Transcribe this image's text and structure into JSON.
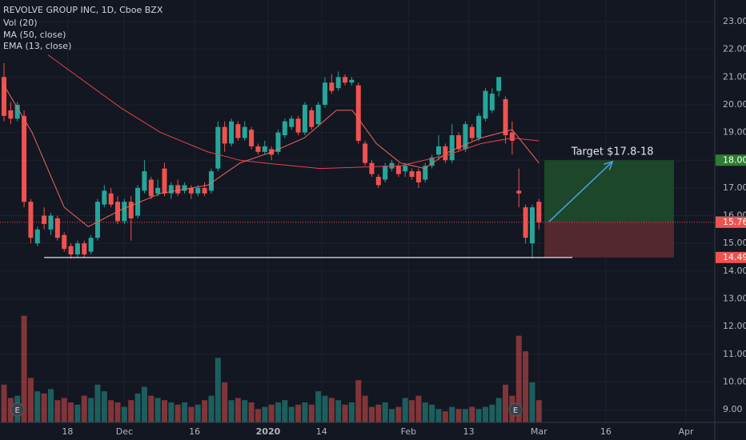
{
  "chart_data": {
    "type": "candlestick",
    "title": "REVOLVE GROUP INC, 1D, Cboe BZX",
    "volume_name": "Vol (20)",
    "up_color": "#26a69a",
    "down_color": "#ef5350",
    "xlim": [
      -0.6,
      106.3
    ],
    "ylim": [
      8.54,
      23.78
    ],
    "vol_lim": [
      0,
      2.7
    ],
    "grid": true,
    "xticks": [
      {
        "value": 9.5,
        "label": "18"
      },
      {
        "value": 18,
        "label": "Dec"
      },
      {
        "value": 28.5,
        "label": "16"
      },
      {
        "value": 39.5,
        "label": "2020"
      },
      {
        "value": 47.5,
        "label": "14"
      },
      {
        "value": 60.5,
        "label": "Feb"
      },
      {
        "value": 69.5,
        "label": "13"
      },
      {
        "value": 80,
        "label": "Mar"
      },
      {
        "value": 90,
        "label": "16"
      },
      {
        "value": 102,
        "label": "Apr"
      }
    ],
    "yticks": [
      {
        "value": 9,
        "label": "9.00"
      },
      {
        "value": 10,
        "label": "10.00"
      },
      {
        "value": 11,
        "label": "11.00"
      },
      {
        "value": 12,
        "label": "12.00"
      },
      {
        "value": 13,
        "label": "13.00"
      },
      {
        "value": 14,
        "label": "14.00"
      },
      {
        "value": 15,
        "label": "15.00"
      },
      {
        "value": 16,
        "label": "16.00"
      },
      {
        "value": 17,
        "label": "17.00"
      },
      {
        "value": 18,
        "label": "18.00"
      },
      {
        "value": 19,
        "label": "19.00"
      },
      {
        "value": 20,
        "label": "20.00"
      },
      {
        "value": 21,
        "label": "21.00"
      },
      {
        "value": 22,
        "label": "22.00"
      },
      {
        "value": 23,
        "label": "23.00"
      }
    ],
    "candles": [
      [
        21.0,
        21.5,
        19.4,
        19.6
      ],
      [
        19.8,
        20.1,
        19.3,
        19.5
      ],
      [
        19.5,
        20.1,
        19.4,
        20.0
      ],
      [
        19.6,
        19.8,
        16.3,
        16.5
      ],
      [
        16.5,
        16.6,
        15.0,
        15.2
      ],
      [
        15.0,
        15.6,
        14.9,
        15.5
      ],
      [
        16.0,
        16.3,
        15.5,
        15.7
      ],
      [
        15.5,
        16.1,
        15.3,
        16.0
      ],
      [
        15.9,
        16.0,
        15.1,
        15.2
      ],
      [
        15.3,
        15.4,
        14.7,
        14.8
      ],
      [
        14.9,
        15.0,
        14.45,
        14.6
      ],
      [
        14.6,
        15.1,
        14.5,
        15.0
      ],
      [
        15.0,
        15.1,
        14.5,
        14.6
      ],
      [
        14.7,
        15.3,
        14.6,
        15.2
      ],
      [
        15.2,
        16.6,
        15.1,
        16.5
      ],
      [
        16.4,
        17.1,
        16.3,
        16.9
      ],
      [
        16.8,
        17.0,
        16.3,
        16.4
      ],
      [
        16.5,
        16.7,
        15.7,
        15.8
      ],
      [
        15.8,
        16.6,
        15.7,
        16.5
      ],
      [
        16.5,
        16.7,
        15.1,
        15.9
      ],
      [
        16.0,
        17.1,
        15.9,
        17.0
      ],
      [
        16.9,
        18.0,
        16.8,
        17.6
      ],
      [
        17.3,
        17.4,
        16.6,
        16.7
      ],
      [
        16.8,
        17.3,
        16.7,
        17.0
      ],
      [
        17.7,
        17.9,
        16.7,
        16.8
      ],
      [
        16.8,
        17.2,
        16.6,
        17.1
      ],
      [
        17.1,
        17.3,
        16.7,
        16.8
      ],
      [
        16.9,
        17.2,
        16.8,
        17.1
      ],
      [
        17.0,
        17.1,
        16.6,
        16.8
      ],
      [
        16.8,
        17.1,
        16.7,
        17.0
      ],
      [
        17.0,
        17.2,
        16.7,
        16.8
      ],
      [
        16.9,
        17.7,
        16.8,
        17.6
      ],
      [
        17.7,
        19.4,
        17.6,
        19.2
      ],
      [
        19.2,
        19.4,
        18.3,
        18.6
      ],
      [
        18.6,
        19.5,
        18.5,
        19.4
      ],
      [
        19.3,
        19.4,
        18.7,
        18.8
      ],
      [
        18.8,
        19.4,
        18.7,
        19.2
      ],
      [
        19.1,
        19.2,
        18.4,
        18.5
      ],
      [
        18.5,
        18.6,
        18.2,
        18.3
      ],
      [
        18.3,
        18.7,
        18.2,
        18.5
      ],
      [
        18.4,
        18.5,
        18.0,
        18.2
      ],
      [
        18.3,
        19.1,
        18.2,
        19.0
      ],
      [
        18.9,
        19.5,
        18.8,
        19.4
      ],
      [
        19.2,
        19.6,
        19.1,
        19.5
      ],
      [
        19.5,
        19.6,
        18.9,
        19.0
      ],
      [
        19.0,
        20.1,
        18.9,
        20.0
      ],
      [
        19.8,
        19.9,
        19.1,
        19.2
      ],
      [
        19.3,
        20.1,
        19.2,
        20.0
      ],
      [
        20.0,
        21.0,
        19.9,
        20.8
      ],
      [
        20.8,
        21.1,
        20.4,
        20.5
      ],
      [
        20.6,
        21.2,
        20.5,
        21.0
      ],
      [
        21.0,
        21.1,
        20.7,
        20.8
      ],
      [
        20.8,
        21.0,
        20.7,
        20.9
      ],
      [
        20.7,
        20.8,
        18.6,
        18.7
      ],
      [
        18.6,
        18.7,
        17.8,
        17.9
      ],
      [
        17.9,
        18.0,
        17.4,
        17.5
      ],
      [
        17.4,
        17.5,
        17.0,
        17.1
      ],
      [
        17.3,
        17.9,
        17.2,
        17.8
      ],
      [
        17.7,
        18.0,
        17.6,
        17.9
      ],
      [
        17.8,
        17.9,
        17.4,
        17.5
      ],
      [
        17.6,
        17.9,
        17.4,
        17.8
      ],
      [
        17.6,
        17.7,
        17.3,
        17.4
      ],
      [
        17.6,
        17.7,
        17.0,
        17.2
      ],
      [
        17.3,
        17.9,
        17.2,
        17.8
      ],
      [
        17.8,
        18.2,
        17.7,
        18.1
      ],
      [
        18.2,
        18.9,
        18.0,
        18.5
      ],
      [
        18.5,
        18.6,
        17.9,
        18.0
      ],
      [
        18.0,
        19.3,
        17.9,
        18.9
      ],
      [
        18.9,
        19.0,
        18.3,
        18.4
      ],
      [
        18.4,
        19.4,
        18.3,
        19.3
      ],
      [
        19.2,
        19.3,
        18.7,
        18.8
      ],
      [
        18.8,
        19.7,
        18.7,
        19.6
      ],
      [
        19.5,
        20.6,
        19.4,
        20.5
      ],
      [
        19.8,
        20.6,
        19.7,
        20.4
      ],
      [
        20.5,
        21.0,
        20.3,
        21.0
      ],
      [
        20.2,
        20.3,
        18.6,
        18.9
      ],
      [
        19.0,
        19.4,
        18.2,
        18.7
      ],
      [
        16.9,
        17.7,
        16.3,
        16.8
      ],
      [
        16.3,
        16.4,
        15.0,
        15.2
      ],
      [
        15.0,
        16.4,
        14.45,
        16.3
      ],
      [
        16.5,
        16.6,
        15.5,
        15.76
      ]
    ],
    "volume": [
      0.85,
      0.55,
      0.6,
      2.4,
      1.0,
      0.7,
      0.65,
      0.75,
      0.5,
      0.55,
      0.45,
      0.4,
      0.6,
      0.55,
      0.85,
      0.7,
      0.5,
      0.45,
      0.35,
      0.5,
      0.65,
      0.8,
      0.6,
      0.55,
      0.5,
      0.45,
      0.4,
      0.45,
      0.35,
      0.4,
      0.5,
      0.6,
      1.45,
      0.9,
      0.5,
      0.55,
      0.5,
      0.45,
      0.3,
      0.35,
      0.4,
      0.45,
      0.5,
      0.35,
      0.4,
      0.45,
      0.4,
      0.7,
      0.6,
      0.55,
      0.5,
      0.4,
      0.45,
      0.95,
      0.6,
      0.35,
      0.4,
      0.45,
      0.3,
      0.35,
      0.55,
      0.5,
      0.6,
      0.45,
      0.4,
      0.3,
      0.25,
      0.35,
      0.3,
      0.3,
      0.35,
      0.3,
      0.35,
      0.4,
      0.55,
      0.85,
      0.6,
      1.95,
      1.6,
      0.9,
      0.5
    ],
    "indicators": [
      {
        "name": "MA (50, close)",
        "color": "#e2434e",
        "x": [
          6.6,
          17.4,
          23.4,
          30.5,
          35.3,
          38.9,
          47.3,
          59.3,
          66.5,
          71.3,
          76,
          80
        ],
        "values": [
          21.8,
          19.9,
          19.0,
          18.3,
          18.0,
          17.9,
          17.7,
          17.8,
          18.2,
          18.6,
          18.8,
          18.7
        ]
      },
      {
        "name": "EMA (13, close)",
        "color": "#f0685e",
        "x": [
          0,
          4.2,
          9,
          12.6,
          17.4,
          23.4,
          30.5,
          35.3,
          40.1,
          44.9,
          49.7,
          52.1,
          55.7,
          59.3,
          62.9,
          66.5,
          71.3,
          76,
          80
        ],
        "values": [
          20.7,
          19.0,
          16.3,
          15.6,
          16.2,
          16.8,
          17.1,
          17.9,
          18.3,
          18.8,
          19.8,
          19.8,
          18.6,
          17.9,
          17.7,
          18.3,
          18.8,
          19.1,
          17.9
        ]
      }
    ],
    "position": {
      "start": 80.8,
      "end": 100.2,
      "entry": 15.78,
      "target": 18.0,
      "stop": 14.49
    },
    "arrow": {
      "x": [
        81.5,
        91
      ],
      "y": [
        15.78,
        17.95
      ]
    },
    "annotation": {
      "text": "Target $17.8-18",
      "x": 91,
      "y": 18.3
    },
    "support": {
      "start": 6,
      "end": 85,
      "value": 14.49
    },
    "last_line": 15.76,
    "price_labels": [
      {
        "value": 18.0,
        "label": "18.00",
        "color": "#2e7d32"
      },
      {
        "value": 15.78,
        "label": "15.78",
        "color": "#4a4e59"
      },
      {
        "value": 15.76,
        "label": "15.76",
        "color": "#ef5350"
      },
      {
        "value": 14.49,
        "label": "14.49",
        "color": "#ef5350"
      }
    ],
    "earnings": [
      {
        "x": 2,
        "label": "E"
      },
      {
        "x": 76.5,
        "label": "E"
      }
    ]
  }
}
